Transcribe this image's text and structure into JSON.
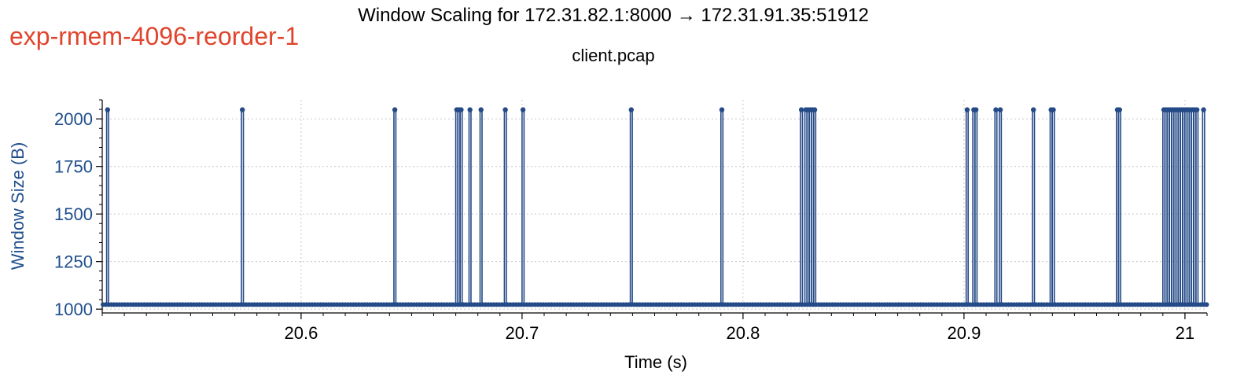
{
  "header": {
    "experiment": "exp-rmem-4096-reorder-1",
    "title": "Window Scaling for 172.31.82.1:8000 → 172.31.91.35:51912",
    "subtitle": "client.pcap"
  },
  "colors": {
    "series": "#244a87",
    "experiment_label": "#e0442c",
    "y_axis_text": "#1f4e8c",
    "grid": "#c8c8c8"
  },
  "chart_data": {
    "type": "line",
    "style": "step",
    "xlabel": "Time (s)",
    "ylabel": "Window Size (B)",
    "xlim": [
      20.51,
      21.01
    ],
    "ylim": [
      980,
      2100
    ],
    "x_ticks": [
      20.6,
      20.7,
      20.8,
      20.9,
      21.0
    ],
    "x_tick_labels": [
      "20.6",
      "20.7",
      "20.8",
      "20.9",
      "21"
    ],
    "y_ticks": [
      1000,
      1250,
      1500,
      1750,
      2000
    ],
    "y_tick_labels": [
      "1000",
      "1250",
      "1500",
      "1750",
      "2000"
    ],
    "grid": true,
    "series": [
      {
        "baseline": 1024,
        "peak": 2048,
        "spike_times": [
          20.512,
          20.573,
          20.642,
          20.67,
          20.671,
          20.672,
          20.676,
          20.681,
          20.692,
          20.7,
          20.749,
          20.79,
          20.826,
          20.828,
          20.829,
          20.83,
          20.831,
          20.832,
          20.901,
          20.904,
          20.905,
          20.914,
          20.916,
          20.931,
          20.939,
          20.94,
          20.969,
          20.97,
          20.99,
          20.991,
          20.992,
          20.993,
          20.994,
          20.995,
          20.996,
          20.997,
          20.998,
          20.999,
          21.0,
          21.001,
          21.002,
          21.003,
          21.004,
          21.005,
          21.008
        ]
      }
    ]
  }
}
